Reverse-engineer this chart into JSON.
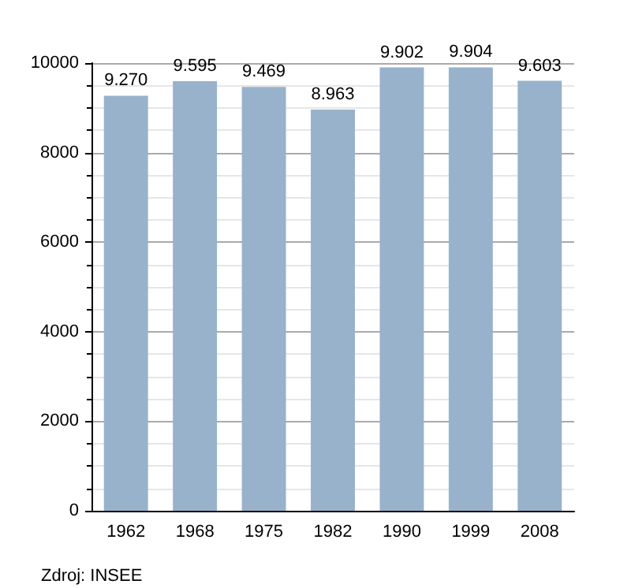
{
  "chart_data": {
    "type": "bar",
    "categories": [
      "1962",
      "1968",
      "1975",
      "1982",
      "1990",
      "1999",
      "2008"
    ],
    "values": [
      9270,
      9595,
      9469,
      8963,
      9902,
      9904,
      9603
    ],
    "value_labels": [
      "9.270",
      "9.595",
      "9.469",
      "8.963",
      "9.902",
      "9.904",
      "9.603"
    ],
    "color": "#98b2cc",
    "ylim": [
      0,
      10000
    ],
    "yticks": [
      0,
      2000,
      4000,
      6000,
      8000,
      10000
    ],
    "grid": "y",
    "annotations": [
      "Zdroj: INSEE"
    ]
  }
}
